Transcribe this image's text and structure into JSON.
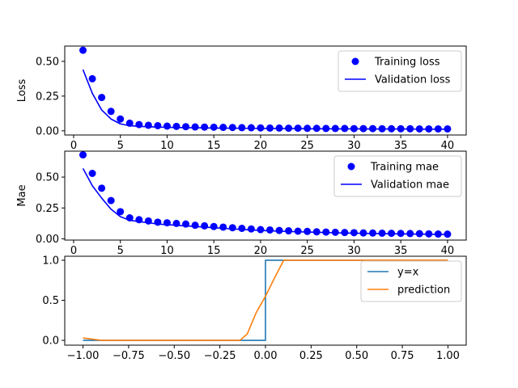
{
  "chart_data": [
    {
      "type": "scatter+line",
      "ylabel": "Loss",
      "xlim": [
        -0.95,
        42.0
      ],
      "ylim": [
        -0.03,
        0.61
      ],
      "xticks": [
        0,
        5,
        10,
        15,
        20,
        25,
        30,
        35,
        40
      ],
      "yticks": [
        0.0,
        0.25,
        0.5
      ],
      "ytick_labels": [
        "0.00",
        "0.25",
        "0.50"
      ],
      "legend_position": "top-right",
      "series": [
        {
          "name": "Training loss",
          "style": "markers",
          "color": "#0000ff",
          "x": [
            1,
            2,
            3,
            4,
            5,
            6,
            7,
            8,
            9,
            10,
            11,
            12,
            13,
            14,
            15,
            16,
            17,
            18,
            19,
            20,
            21,
            22,
            23,
            24,
            25,
            26,
            27,
            28,
            29,
            30,
            31,
            32,
            33,
            34,
            35,
            36,
            37,
            38,
            39,
            40
          ],
          "y": [
            0.58,
            0.375,
            0.24,
            0.14,
            0.085,
            0.055,
            0.045,
            0.04,
            0.037,
            0.034,
            0.032,
            0.03,
            0.028,
            0.027,
            0.026,
            0.025,
            0.024,
            0.023,
            0.022,
            0.021,
            0.02,
            0.02,
            0.019,
            0.019,
            0.018,
            0.018,
            0.017,
            0.017,
            0.017,
            0.016,
            0.016,
            0.016,
            0.015,
            0.015,
            0.015,
            0.015,
            0.014,
            0.014,
            0.014,
            0.014
          ]
        },
        {
          "name": "Validation loss",
          "style": "line",
          "color": "#0000ff",
          "x": [
            1,
            2,
            3,
            4,
            5,
            6,
            7,
            8,
            9,
            10,
            11,
            12,
            13,
            14,
            15,
            16,
            17,
            18,
            19,
            20,
            21,
            22,
            23,
            24,
            25,
            26,
            27,
            28,
            29,
            30,
            31,
            32,
            33,
            34,
            35,
            36,
            37,
            38,
            39,
            40
          ],
          "y": [
            0.44,
            0.27,
            0.15,
            0.085,
            0.05,
            0.037,
            0.032,
            0.029,
            0.027,
            0.025,
            0.024,
            0.023,
            0.022,
            0.021,
            0.02,
            0.019,
            0.019,
            0.018,
            0.018,
            0.017,
            0.017,
            0.016,
            0.016,
            0.016,
            0.015,
            0.015,
            0.015,
            0.014,
            0.014,
            0.014,
            0.014,
            0.013,
            0.013,
            0.013,
            0.013,
            0.013,
            0.012,
            0.012,
            0.012,
            0.012
          ]
        }
      ]
    },
    {
      "type": "scatter+line",
      "ylabel": "Mae",
      "xlim": [
        -0.95,
        42.0
      ],
      "ylim": [
        -0.01,
        0.71
      ],
      "xticks": [
        0,
        5,
        10,
        15,
        20,
        25,
        30,
        35,
        40
      ],
      "yticks": [
        0.0,
        0.25,
        0.5
      ],
      "ytick_labels": [
        "0.00",
        "0.25",
        "0.50"
      ],
      "legend_position": "top-right",
      "series": [
        {
          "name": "Training mae",
          "style": "markers",
          "color": "#0000ff",
          "x": [
            1,
            2,
            3,
            4,
            5,
            6,
            7,
            8,
            9,
            10,
            11,
            12,
            13,
            14,
            15,
            16,
            17,
            18,
            19,
            20,
            21,
            22,
            23,
            24,
            25,
            26,
            27,
            28,
            29,
            30,
            31,
            32,
            33,
            34,
            35,
            36,
            37,
            38,
            39,
            40
          ],
          "y": [
            0.68,
            0.53,
            0.41,
            0.31,
            0.22,
            0.17,
            0.155,
            0.145,
            0.135,
            0.13,
            0.125,
            0.12,
            0.11,
            0.105,
            0.1,
            0.095,
            0.09,
            0.085,
            0.08,
            0.075,
            0.072,
            0.068,
            0.065,
            0.062,
            0.06,
            0.057,
            0.055,
            0.053,
            0.051,
            0.05,
            0.048,
            0.047,
            0.046,
            0.045,
            0.044,
            0.043,
            0.042,
            0.04,
            0.039,
            0.038
          ]
        },
        {
          "name": "Validation mae",
          "style": "line",
          "color": "#0000ff",
          "x": [
            1,
            2,
            3,
            4,
            5,
            6,
            7,
            8,
            9,
            10,
            11,
            12,
            13,
            14,
            15,
            16,
            17,
            18,
            19,
            20,
            21,
            22,
            23,
            24,
            25,
            26,
            27,
            28,
            29,
            30,
            31,
            32,
            33,
            34,
            35,
            36,
            37,
            38,
            39,
            40
          ],
          "y": [
            0.57,
            0.43,
            0.33,
            0.24,
            0.18,
            0.15,
            0.14,
            0.13,
            0.12,
            0.115,
            0.11,
            0.105,
            0.1,
            0.095,
            0.09,
            0.085,
            0.08,
            0.076,
            0.072,
            0.068,
            0.065,
            0.062,
            0.06,
            0.057,
            0.055,
            0.053,
            0.051,
            0.049,
            0.047,
            0.046,
            0.044,
            0.043,
            0.042,
            0.041,
            0.04,
            0.039,
            0.038,
            0.037,
            0.036,
            0.035
          ]
        }
      ]
    },
    {
      "type": "line",
      "ylabel": "",
      "xlim": [
        -1.1,
        1.1
      ],
      "ylim": [
        -0.06,
        1.05
      ],
      "xticks": [
        -1.0,
        -0.75,
        -0.5,
        -0.25,
        0.0,
        0.25,
        0.5,
        0.75,
        1.0
      ],
      "xtick_labels": [
        "−1.00",
        "−0.75",
        "−0.50",
        "−0.25",
        "0.00",
        "0.25",
        "0.50",
        "0.75",
        "1.00"
      ],
      "yticks": [
        0.0,
        0.5,
        1.0
      ],
      "ytick_labels": [
        "0.0",
        "0.5",
        "1.0"
      ],
      "legend_position": "top-right",
      "series": [
        {
          "name": "y=x",
          "style": "line",
          "color": "#1f77b4",
          "x": [
            -1.0,
            0.0,
            0.0,
            1.0
          ],
          "y": [
            0.0,
            0.0,
            1.0,
            1.0
          ]
        },
        {
          "name": "prediction",
          "style": "line",
          "color": "#ff7f0e",
          "x": [
            -1.0,
            -0.9,
            -0.8,
            -0.5,
            -0.3,
            -0.14,
            -0.1,
            -0.05,
            0.0,
            0.05,
            0.1,
            0.2,
            0.5,
            1.0
          ],
          "y": [
            0.03,
            0.0,
            0.0,
            0.0,
            0.0,
            0.0,
            0.08,
            0.35,
            0.55,
            0.78,
            1.0,
            1.0,
            1.0,
            1.0
          ]
        }
      ]
    }
  ]
}
